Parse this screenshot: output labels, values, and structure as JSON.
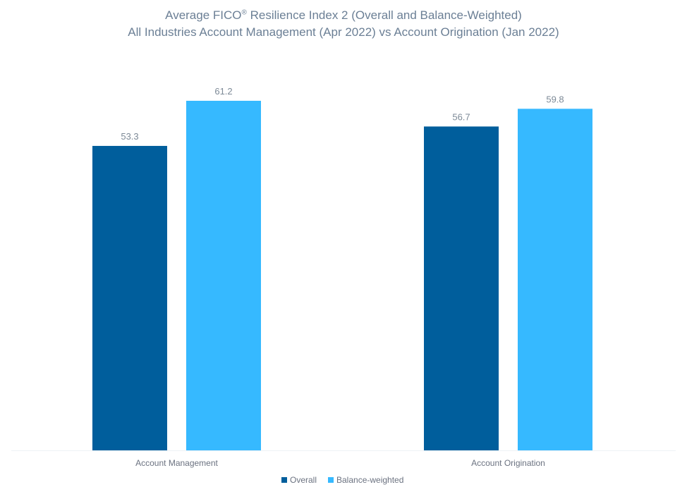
{
  "title": {
    "line1_before": "Average FICO",
    "line1_mark": "®",
    "line1_after": " Resilience Index 2 (Overall and Balance-Weighted)",
    "line2": "All Industries Account Management (Apr 2022) vs Account Origination (Jan 2022)"
  },
  "chart_data": {
    "type": "bar",
    "title": "Average FICO® Resilience Index 2 (Overall and Balance-Weighted) All Industries Account Management (Apr 2022) vs Account Origination (Jan 2022)",
    "categories": [
      "Account Management",
      "Account Origination"
    ],
    "series": [
      {
        "name": "Overall",
        "color": "#005e9c",
        "values": [
          53.3,
          56.7
        ]
      },
      {
        "name": "Balance-weighted",
        "color": "#36b9ff",
        "values": [
          61.2,
          59.8
        ]
      }
    ],
    "value_labels": [
      [
        "53.3",
        "56.7"
      ],
      [
        "61.2",
        "59.8"
      ]
    ],
    "xlabel": "",
    "ylabel": "",
    "ylim": [
      0,
      70
    ],
    "grid": false,
    "legend": "bottom-center"
  }
}
